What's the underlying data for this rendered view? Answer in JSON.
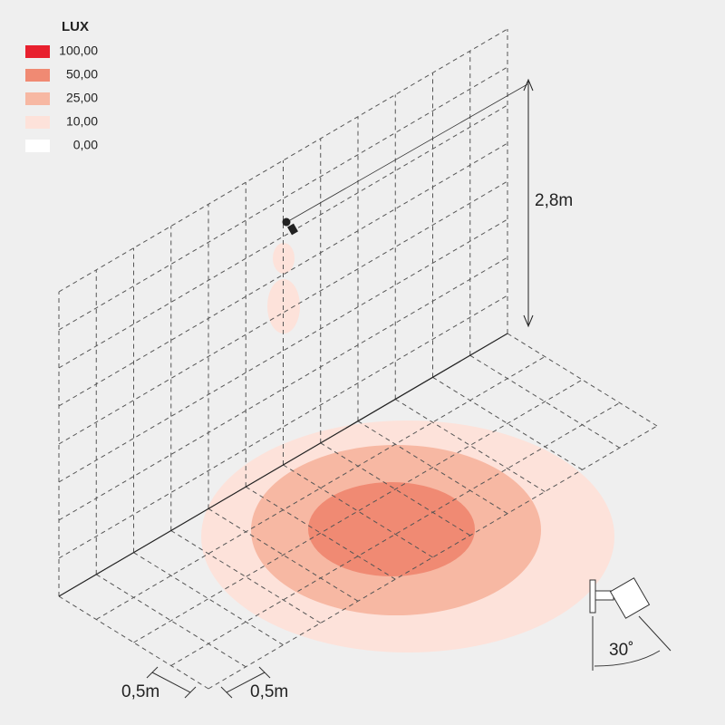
{
  "legend": {
    "title": "LUX",
    "items": [
      {
        "label": "100,00",
        "color": "#e8202e"
      },
      {
        "label": "50,00",
        "color": "#f08a73"
      },
      {
        "label": "25,00",
        "color": "#f7b8a3"
      },
      {
        "label": "10,00",
        "color": "#fde2da"
      },
      {
        "label": "0,00",
        "color": "#ffffff"
      }
    ]
  },
  "height_label": "2,8m",
  "spacing_labels": [
    "0,5m",
    "0,5m"
  ],
  "angle_label": "30˚"
}
